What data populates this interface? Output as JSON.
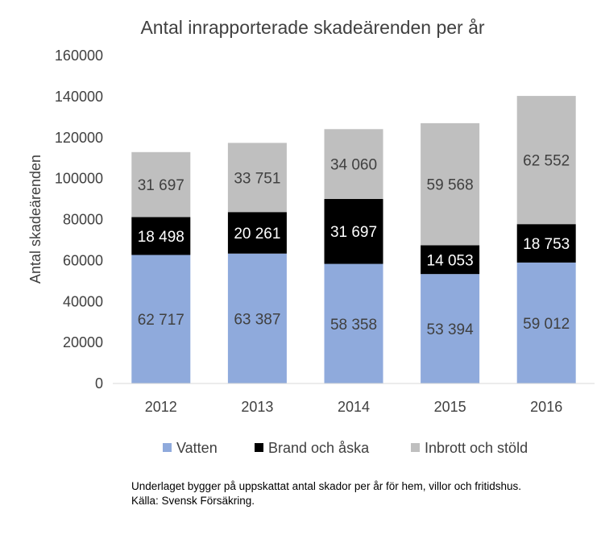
{
  "chart_data": {
    "type": "bar",
    "stacked": true,
    "title": "Antal inrapporterade skadeärenden per år",
    "xlabel": "",
    "ylabel": "Antal skadeärenden",
    "ylim": [
      0,
      160000
    ],
    "yticks": [
      0,
      20000,
      40000,
      60000,
      80000,
      100000,
      120000,
      140000,
      160000
    ],
    "ytick_labels": [
      "0",
      "20000",
      "40000",
      "60000",
      "80000",
      "100000",
      "120000",
      "140000",
      "160000"
    ],
    "categories": [
      "2012",
      "2013",
      "2014",
      "2015",
      "2016"
    ],
    "series": [
      {
        "name": "Vatten",
        "color": "#8faadc",
        "label_color": "#404040",
        "values": [
          62717,
          63387,
          58358,
          53394,
          59012
        ],
        "labels": [
          "62 717",
          "63 387",
          "58 358",
          "53 394",
          "59 012"
        ]
      },
      {
        "name": "Brand och åska",
        "color": "#000000",
        "label_color": "#ffffff",
        "values": [
          18498,
          20261,
          31697,
          14053,
          18753
        ],
        "labels": [
          "18 498",
          "20 261",
          "31 697",
          "14 053",
          "18 753"
        ]
      },
      {
        "name": "Inbrott och stöld",
        "color": "#bfbfbf",
        "label_color": "#404040",
        "values": [
          31697,
          33751,
          34060,
          59568,
          62552
        ],
        "labels": [
          "31 697",
          "33 751",
          "34 060",
          "59 568",
          "62 552"
        ]
      }
    ],
    "grid": false,
    "legend": "bottom"
  },
  "footnote": {
    "line1": "Underlaget bygger på uppskattat antal skador per år för hem, villor och fritidshus.",
    "line2": "Källa: Svensk Försäkring."
  }
}
